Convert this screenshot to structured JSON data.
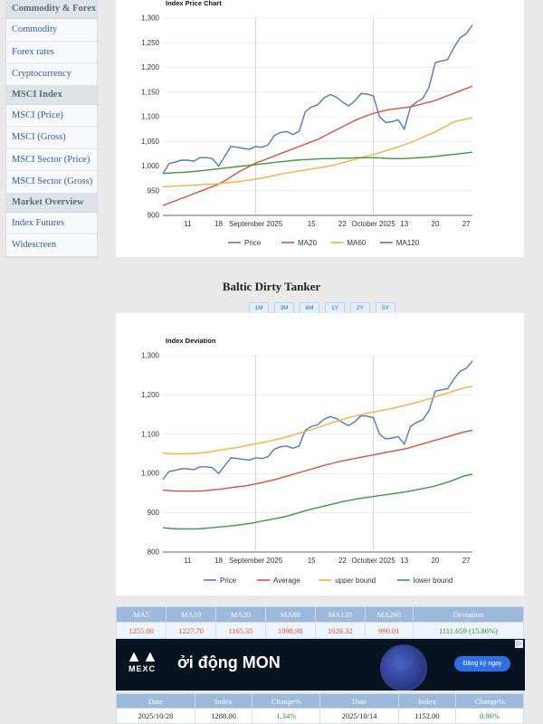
{
  "sidebar": {
    "items": [
      {
        "type": "section",
        "label": "Commodity & Forex"
      },
      {
        "type": "link",
        "label": "Commodity"
      },
      {
        "type": "link",
        "label": "Forex rates"
      },
      {
        "type": "link",
        "label": "Cryptocurrency"
      },
      {
        "type": "section",
        "label": "MSCI Index"
      },
      {
        "type": "link",
        "label": "MSCI (Price)"
      },
      {
        "type": "link",
        "label": "MSCI (Gross)"
      },
      {
        "type": "link",
        "label": "MSCI Sector (Price)"
      },
      {
        "type": "link",
        "label": "MSCI Sector (Gross)"
      },
      {
        "type": "section",
        "label": "Market Overview"
      },
      {
        "type": "link",
        "label": "Index Futures"
      },
      {
        "type": "link",
        "label": "Widescreen"
      }
    ]
  },
  "section_title": "Baltic Dirty Tanker",
  "range_buttons": [
    "1M",
    "3M",
    "6M",
    "1Y",
    "2Y",
    "5Y"
  ],
  "chart_data": [
    {
      "type": "line",
      "title": "Index Price Chart",
      "ylim": [
        900,
        1300
      ],
      "y_ticks": [
        "900",
        "950",
        "1,000",
        "1,050",
        "1,100",
        "1,150",
        "1,200",
        "1,250",
        "1,300"
      ],
      "x_ticks": [
        {
          "label": "11",
          "t": 4
        },
        {
          "label": "18",
          "t": 9
        },
        {
          "label": "September 2025",
          "t": 15
        },
        {
          "label": "15",
          "t": 24
        },
        {
          "label": "22",
          "t": 29
        },
        {
          "label": "October 2025",
          "t": 34
        },
        {
          "label": "13",
          "t": 39
        },
        {
          "label": "20",
          "t": 44
        },
        {
          "label": "27",
          "t": 49
        }
      ],
      "grid_t": [
        15,
        34
      ],
      "series": [
        {
          "name": "Price",
          "color": "#4e79c4",
          "values": [
            985,
            1005,
            1008,
            1012,
            1012,
            1010,
            1017,
            1017,
            1015,
            1000,
            1020,
            1040,
            1038,
            1036,
            1034,
            1040,
            1038,
            1043,
            1062,
            1068,
            1070,
            1064,
            1070,
            1110,
            1120,
            1124,
            1138,
            1145,
            1140,
            1130,
            1122,
            1132,
            1147,
            1146,
            1142,
            1100,
            1088,
            1090,
            1094,
            1075,
            1120,
            1130,
            1137,
            1160,
            1210,
            1213,
            1216,
            1240,
            1260,
            1268,
            1286
          ]
        },
        {
          "name": "MA20",
          "color": "#e0503a",
          "values": [
            920,
            926,
            932,
            938,
            944,
            950,
            956,
            962,
            970,
            980,
            990,
            998,
            1006,
            1012,
            1018,
            1024,
            1030,
            1036,
            1042,
            1048,
            1054,
            1062,
            1070,
            1078,
            1086,
            1094,
            1100,
            1106,
            1110,
            1114,
            1116,
            1118,
            1120,
            1124,
            1128,
            1132,
            1138,
            1144,
            1150,
            1156,
            1162
          ]
        },
        {
          "name": "MA60",
          "color": "#f2b23e",
          "values": [
            958,
            959,
            960,
            961,
            962,
            963,
            964,
            966,
            968,
            970,
            973,
            976,
            980,
            984,
            987,
            990,
            993,
            996,
            999,
            1003,
            1008,
            1013,
            1018,
            1023,
            1028,
            1034,
            1040,
            1046,
            1054,
            1062,
            1070,
            1080,
            1090,
            1094,
            1098
          ]
        },
        {
          "name": "MA120",
          "color": "#3a9a3f",
          "values": [
            985,
            986,
            987,
            988,
            990,
            992,
            994,
            996,
            998,
            1000,
            1002,
            1004,
            1006,
            1008,
            1010,
            1012,
            1013,
            1014,
            1015,
            1015,
            1016,
            1016,
            1017,
            1017,
            1017,
            1016,
            1015,
            1015,
            1016,
            1017,
            1018,
            1020,
            1022,
            1024,
            1026,
            1028
          ]
        }
      ],
      "legend": [
        "Price",
        "MA20",
        "MA60",
        "MA120"
      ]
    },
    {
      "type": "line",
      "title": "Index Deviation",
      "ylim": [
        800,
        1300
      ],
      "y_ticks": [
        "800",
        "900",
        "1,000",
        "1,100",
        "1,200",
        "1,300"
      ],
      "x_ticks": [
        {
          "label": "11",
          "t": 4
        },
        {
          "label": "18",
          "t": 9
        },
        {
          "label": "September 2025",
          "t": 15
        },
        {
          "label": "15",
          "t": 24
        },
        {
          "label": "22",
          "t": 29
        },
        {
          "label": "October 2025",
          "t": 34
        },
        {
          "label": "13",
          "t": 39
        },
        {
          "label": "20",
          "t": 44
        },
        {
          "label": "27",
          "t": 49
        }
      ],
      "grid_t": [
        15,
        34
      ],
      "series": [
        {
          "name": "Price",
          "color": "#4e79c4",
          "values": [
            985,
            1005,
            1008,
            1012,
            1012,
            1010,
            1017,
            1017,
            1015,
            1000,
            1020,
            1040,
            1038,
            1036,
            1034,
            1040,
            1038,
            1043,
            1062,
            1068,
            1070,
            1064,
            1070,
            1110,
            1120,
            1124,
            1138,
            1145,
            1140,
            1130,
            1122,
            1132,
            1147,
            1146,
            1142,
            1100,
            1088,
            1090,
            1094,
            1075,
            1120,
            1130,
            1137,
            1160,
            1210,
            1213,
            1216,
            1240,
            1260,
            1268,
            1286
          ]
        },
        {
          "name": "Average",
          "color": "#e0503a",
          "values": [
            958,
            956,
            955,
            955,
            955,
            956,
            958,
            960,
            963,
            966,
            968,
            972,
            976,
            981,
            986,
            992,
            998,
            1004,
            1010,
            1016,
            1022,
            1027,
            1032,
            1036,
            1040,
            1044,
            1048,
            1052,
            1056,
            1060,
            1064,
            1070,
            1076,
            1082,
            1088,
            1094,
            1100,
            1106,
            1110
          ]
        },
        {
          "name": "upper bound",
          "color": "#f2b23e",
          "values": [
            1052,
            1050,
            1050,
            1050,
            1051,
            1053,
            1056,
            1060,
            1063,
            1066,
            1070,
            1074,
            1078,
            1082,
            1087,
            1092,
            1098,
            1104,
            1110,
            1117,
            1124,
            1131,
            1137,
            1143,
            1148,
            1153,
            1157,
            1161,
            1165,
            1170,
            1175,
            1180,
            1186,
            1192,
            1199,
            1205,
            1212,
            1218,
            1222
          ]
        },
        {
          "name": "lower bound",
          "color": "#3a9a3f",
          "values": [
            862,
            860,
            859,
            859,
            859,
            860,
            862,
            864,
            866,
            868,
            871,
            874,
            878,
            882,
            886,
            890,
            896,
            902,
            908,
            913,
            918,
            923,
            928,
            932,
            936,
            939,
            942,
            945,
            948,
            951,
            954,
            958,
            962,
            966,
            972,
            978,
            986,
            994,
            998
          ]
        }
      ],
      "legend": [
        "Price",
        "Average",
        "upper bound",
        "lower bound"
      ]
    }
  ],
  "ma_table": {
    "headers": [
      "MA5",
      "MA10",
      "MA20",
      "MA60",
      "MA120",
      "MA260",
      "Deviation"
    ],
    "values": [
      "1255.00",
      "1227.70",
      "1165.35",
      "1098.98",
      "1028.32",
      "990.01",
      "1111.659 (15.86%)"
    ],
    "colors": {
      "ma": "#e0503a",
      "deviation": "#2e8b3a"
    }
  },
  "ad": {
    "brand": "MEXC",
    "headline": "ởi động MON",
    "cta": "Đăng ký ngay"
  },
  "history_table": {
    "headers": [
      "Date",
      "Index",
      "Change%",
      "Date",
      "Index",
      "Change%"
    ],
    "rows": [
      [
        "2025/10/28",
        "1288.00",
        "1.34%",
        "2025/10/14",
        "1152.00",
        "0.96%"
      ]
    ],
    "colors": {
      "change": "#2e8b3a"
    }
  }
}
